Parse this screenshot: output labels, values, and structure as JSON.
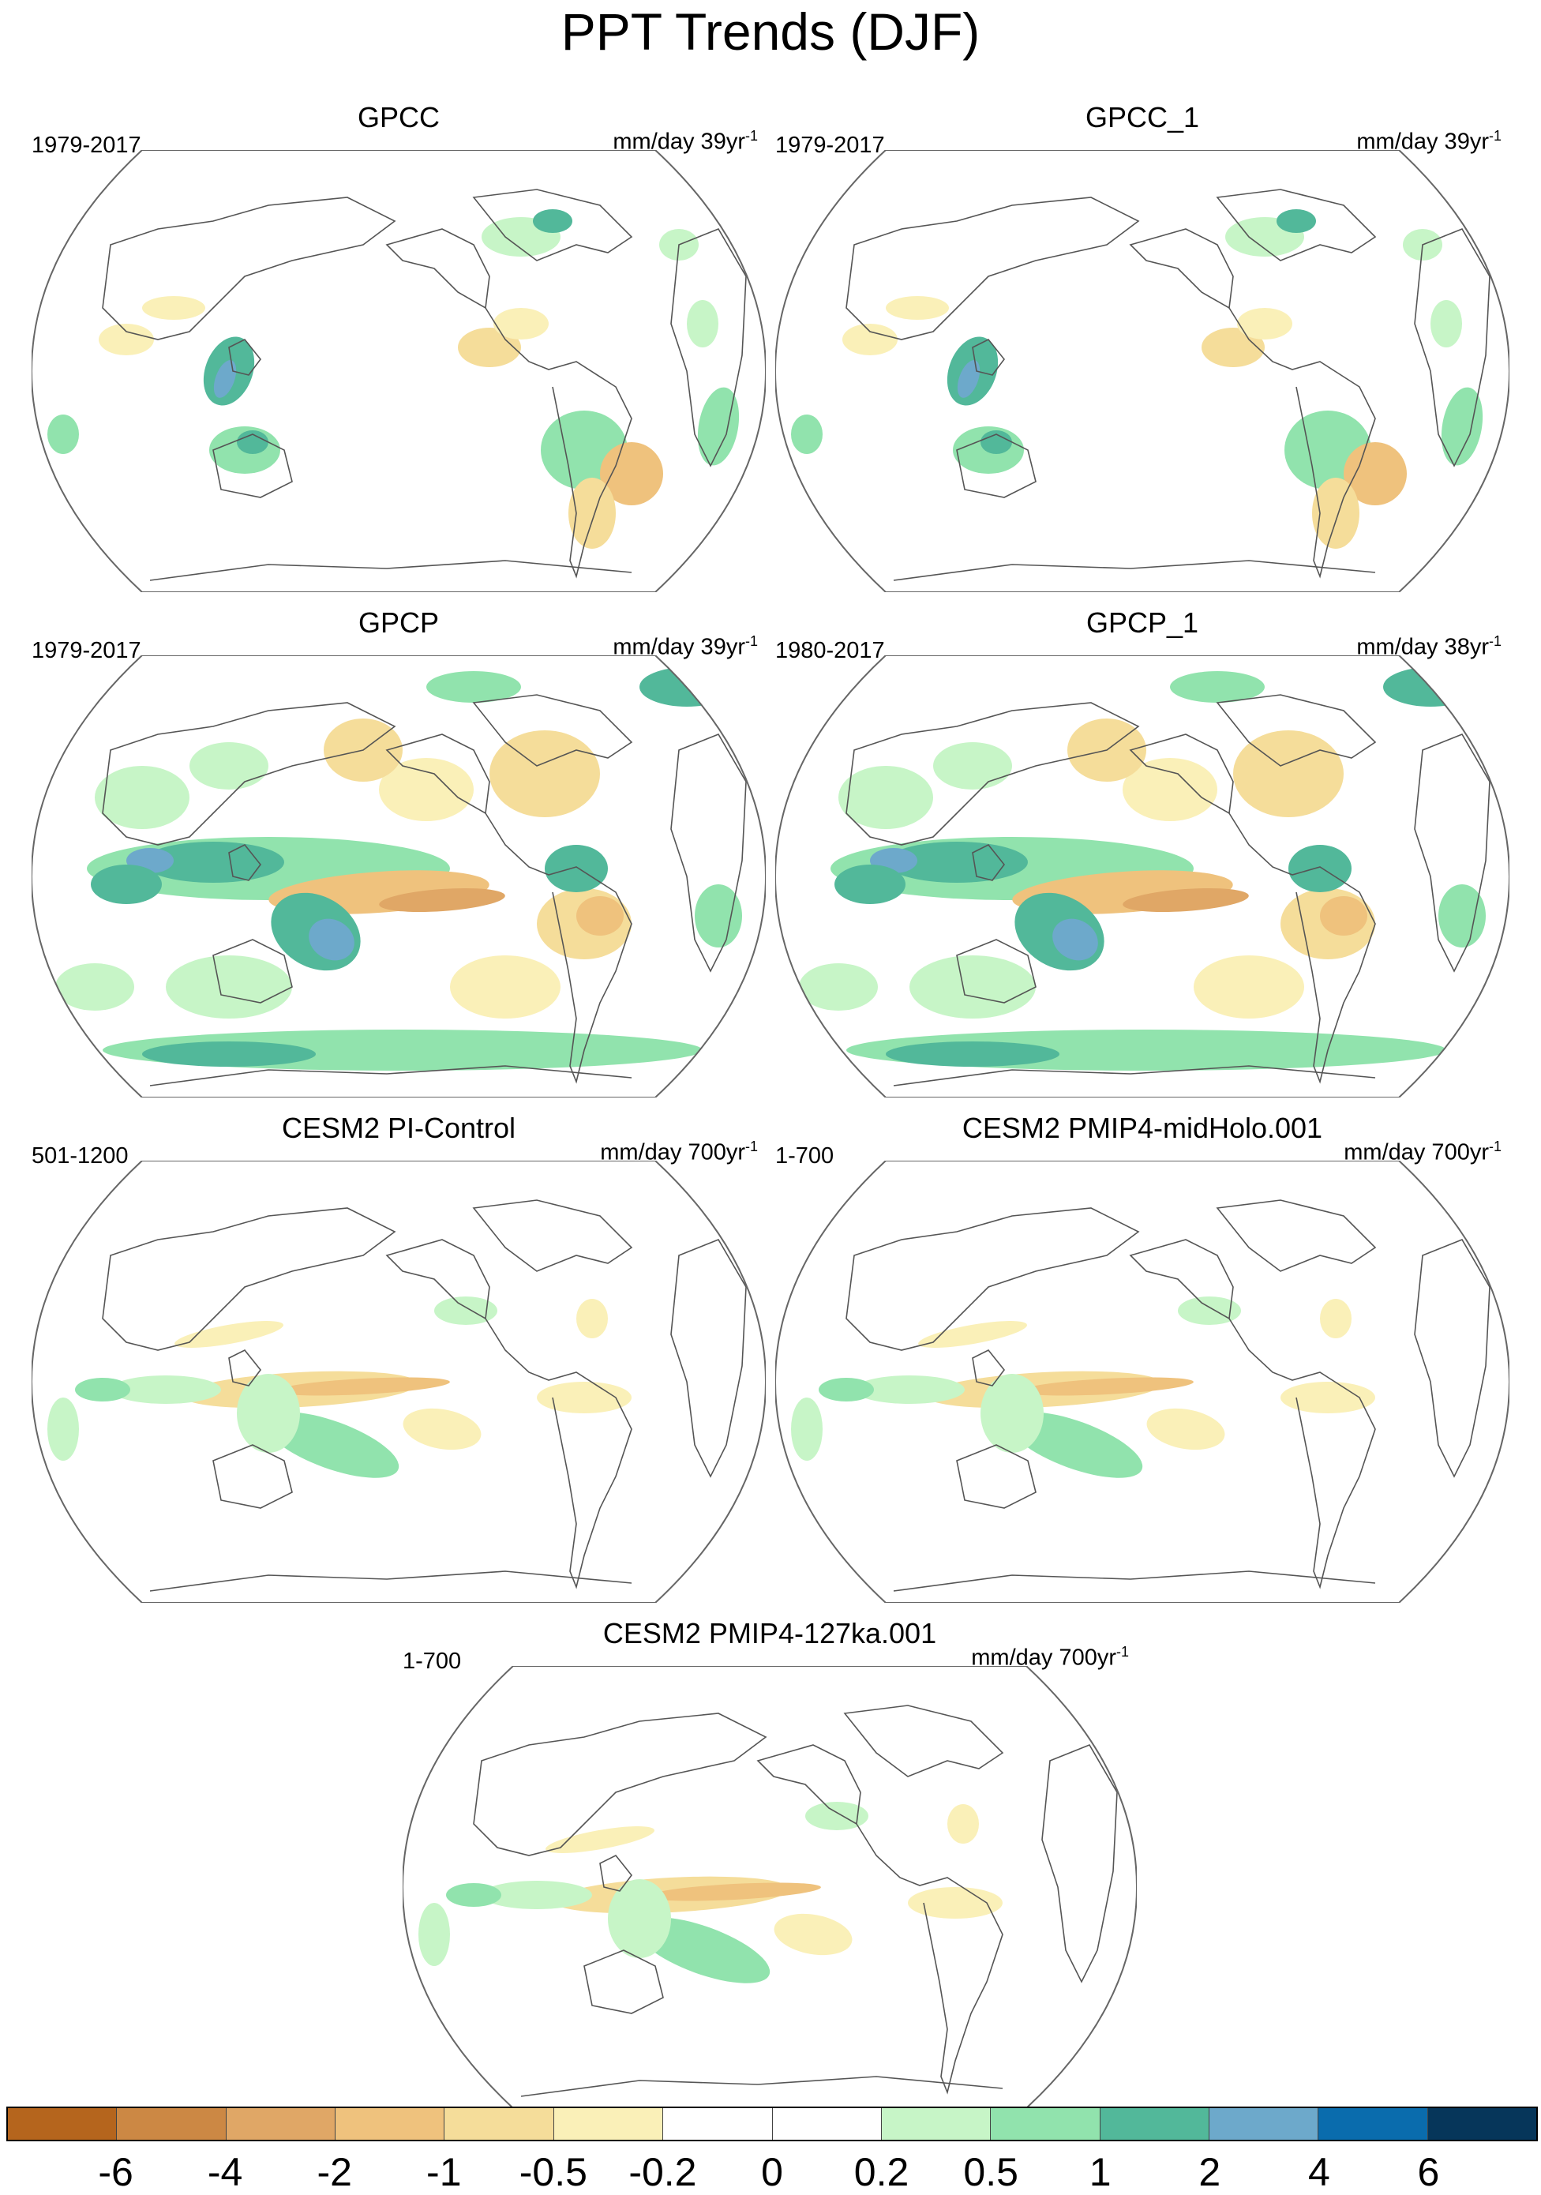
{
  "title": "PPT Trends (DJF)",
  "panels": [
    {
      "title": "GPCC",
      "period": "1979-2017",
      "units": "mm/day 39yr",
      "units_sup": "-1",
      "pattern": "obs_land"
    },
    {
      "title": "GPCC_1",
      "period": "1979-2017",
      "units": "mm/day 39yr",
      "units_sup": "-1",
      "pattern": "obs_land"
    },
    {
      "title": "GPCP",
      "period": "1979-2017",
      "units": "mm/day 39yr",
      "units_sup": "-1",
      "pattern": "obs_global"
    },
    {
      "title": "GPCP_1",
      "period": "1980-2017",
      "units": "mm/day 38yr",
      "units_sup": "-1",
      "pattern": "obs_global"
    },
    {
      "title": "CESM2 PI-Control",
      "period": "501-1200",
      "units": "mm/day 700yr",
      "units_sup": "-1",
      "pattern": "model"
    },
    {
      "title": "CESM2 PMIP4-midHolo.001",
      "period": "1-700",
      "units": "mm/day 700yr",
      "units_sup": "-1",
      "pattern": "model"
    },
    {
      "title": "CESM2 PMIP4-127ka.001",
      "period": "1-700",
      "units": "mm/day 700yr",
      "units_sup": "-1",
      "pattern": "model"
    }
  ],
  "colorbar": {
    "labels": [
      "-6",
      "-4",
      "-2",
      "-1",
      "-0.5",
      "-0.2",
      "0",
      "0.2",
      "0.5",
      "1",
      "2",
      "4",
      "6"
    ],
    "colors": [
      "#b5651d",
      "#cc8844",
      "#e0a766",
      "#efc27d",
      "#f5dd9a",
      "#faf0b8",
      "#ffffff",
      "#ffffff",
      "#c7f5c7",
      "#91e3ad",
      "#52b89a",
      "#6da9cb",
      "#0a6cad",
      "#06365a"
    ]
  }
}
